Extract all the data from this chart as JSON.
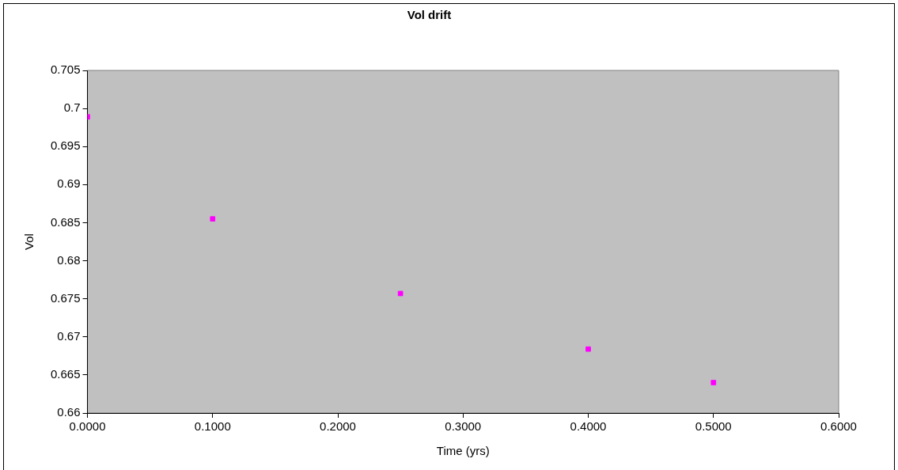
{
  "chart_data": {
    "type": "scatter",
    "title": "Vol drift",
    "xlabel": "Time (yrs)",
    "ylabel": "Vol",
    "x": [
      0.0,
      0.1,
      0.25,
      0.4,
      0.5
    ],
    "series": [
      {
        "color": "#ff00ff",
        "values": [
          0.6989,
          0.6855,
          0.6757,
          0.6684,
          0.664
        ]
      }
    ],
    "marker": "square",
    "grid": false,
    "legend": false,
    "xlim": [
      0,
      0.6
    ],
    "xticks": [
      {
        "value": 0,
        "label": "0.0000"
      },
      {
        "value": 0.1,
        "label": "0.1000"
      },
      {
        "value": 0.2,
        "label": "0.2000"
      },
      {
        "value": 0.3,
        "label": "0.3000"
      },
      {
        "value": 0.4,
        "label": "0.4000"
      },
      {
        "value": 0.5,
        "label": "0.5000"
      },
      {
        "value": 0.6,
        "label": "0.6000"
      }
    ],
    "ylim": [
      0.66,
      0.705
    ],
    "yticks": [
      0.66,
      0.665,
      0.67,
      0.675,
      0.68,
      0.685,
      0.69,
      0.695,
      0.7,
      0.705
    ]
  }
}
